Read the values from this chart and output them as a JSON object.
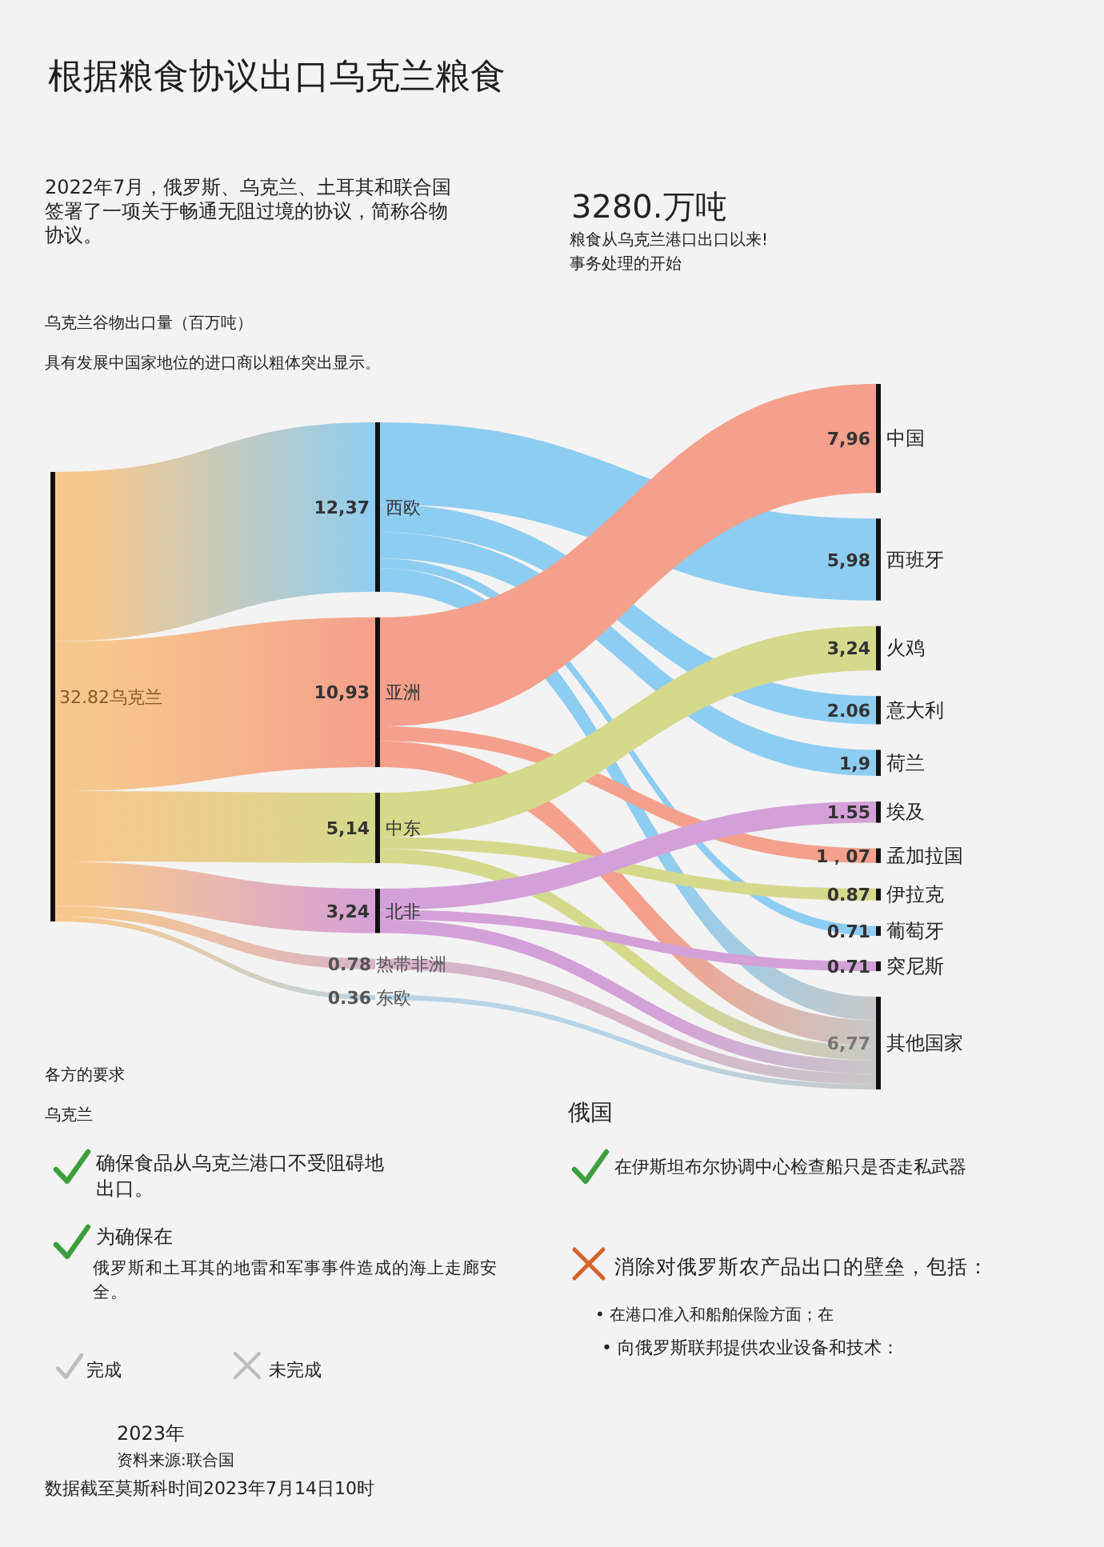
{
  "chart_data": {
    "type": "other",
    "title": "根据粮食协议出口乌克兰粮食",
    "subtitle": "2022年7月，俄罗斯、乌克兰、土耳其和联合国签署了一项关于畅通无阻过境的协议，简称谷物协议。",
    "categories": [
      "西欧",
      "亚洲",
      "中东",
      "北非",
      "热带非洲",
      "东欧",
      "中国",
      "西班牙",
      "火鸡",
      "意大利",
      "荷兰",
      "埃及",
      "孟加拉国",
      "伊拉克",
      "葡萄牙",
      "突尼斯",
      "其他国家"
    ],
    "colors": [
      "#8ecdf2",
      "#f4a08c",
      "#d5d98c",
      "#d4a0d8",
      "#d8b4c9",
      "#b7d4e6",
      "#f4a08c",
      "#8ecdf2",
      "#d5d98c",
      "#8ecdf2",
      "#8ecdf2",
      "#d4a0d8",
      "#f4a08c",
      "#d5d98c",
      "#8ecdf2",
      "#d4a0d8",
      "#c8c8c8"
    ],
    "totals": [
      null,
      null,
      null,
      null,
      null,
      null,
      null,
      null,
      null,
      null,
      null,
      null,
      null,
      null,
      null,
      null,
      "6,77"
    ],
    "series": [
      {
        "color": "#f7c88e",
        "values": [
          12.37,
          10.93,
          5.14,
          3.24,
          0.78,
          0.36,
          null,
          null,
          null,
          null,
          null,
          null,
          null,
          null,
          null,
          null,
          null
        ],
        "value_labels": [
          "12,37",
          "10,93",
          "5,14",
          "3,24",
          "0.78",
          "0.36",
          null,
          null,
          null,
          null,
          null,
          null,
          null,
          null,
          null,
          null,
          null
        ]
      },
      {
        "values": [
          null,
          null,
          null,
          null,
          null,
          null,
          null,
          5.98,
          null,
          2.06,
          1.9,
          null,
          null,
          null,
          0.71,
          null,
          null
        ],
        "value_labels": [
          null,
          null,
          null,
          null,
          null,
          null,
          null,
          "5,98",
          null,
          "2.06",
          "1,9",
          null,
          null,
          null,
          "0.71",
          null,
          null
        ]
      },
      {
        "values": [
          null,
          null,
          null,
          null,
          null,
          null,
          7.96,
          null,
          null,
          null,
          null,
          null,
          1.07,
          null,
          null,
          null,
          null
        ],
        "value_labels": [
          null,
          null,
          null,
          null,
          null,
          null,
          "7,96",
          null,
          null,
          null,
          null,
          null,
          "1，07",
          null,
          null,
          null,
          null
        ]
      },
      {
        "values": [
          null,
          null,
          null,
          null,
          null,
          null,
          null,
          null,
          3.24,
          null,
          null,
          null,
          null,
          0.87,
          null,
          null,
          null
        ],
        "value_labels": [
          null,
          null,
          null,
          null,
          null,
          null,
          null,
          null,
          "3,24",
          null,
          null,
          null,
          null,
          "0.87",
          null,
          null,
          null
        ]
      },
      {
        "values": [
          null,
          null,
          null,
          null,
          null,
          null,
          null,
          null,
          null,
          null,
          null,
          1.55,
          null,
          null,
          null,
          0.71,
          null
        ],
        "value_labels": [
          null,
          null,
          null,
          null,
          null,
          null,
          null,
          null,
          null,
          null,
          null,
          "1.55",
          null,
          null,
          null,
          "0.71",
          null
        ]
      }
    ],
    "annotations": [
      "乌克兰谷物出口量（百万吨）",
      "具有发展中国家地位的进口商以粗体突出显示。",
      "3280.万吨",
      "粮食从乌克兰港口出口以来!",
      "事务处理的开始",
      "32.82乌克兰",
      "各方的要求",
      "乌克兰",
      "确保食品从乌克兰港口不受阻碍地出口。",
      "为确保在",
      "俄罗斯和土耳其的地雷和军事事件造成的海上走廊安全。",
      "完成",
      "未完成",
      "俄国",
      "在伊斯坦布尔协调中心检查船只是否走私武器",
      "消除对俄罗斯农产品出口的壁垒，包括：",
      "• 在港口准入和船舶保险方面；在",
      "• 向俄罗斯联邦提供农业设备和技术：",
      "2023年",
      "资料来源:联合国",
      "数据截至莫斯科时间2023年7月14日10时"
    ]
  }
}
